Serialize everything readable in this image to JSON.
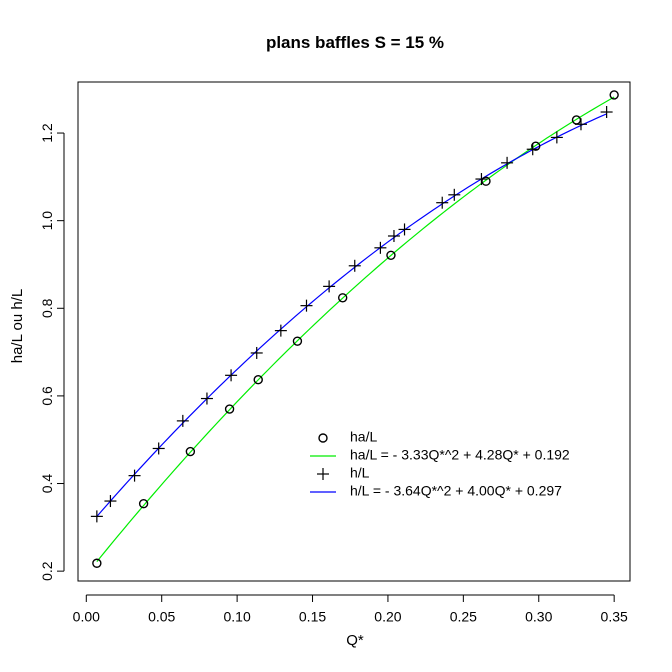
{
  "chart_data": {
    "type": "scatter",
    "title": "plans baffles S = 15 %",
    "xlabel": "Q*",
    "ylabel": "ha/L ou h/L",
    "xlim": [
      -0.0055,
      0.3605
    ],
    "ylim": [
      0.1775,
      1.3165
    ],
    "x_ticks": [
      0.0,
      0.05,
      0.1,
      0.15,
      0.2,
      0.25,
      0.3,
      0.35
    ],
    "x_tick_labels": [
      "0.00",
      "0.05",
      "0.10",
      "0.15",
      "0.20",
      "0.25",
      "0.30",
      "0.35"
    ],
    "y_ticks": [
      0.2,
      0.4,
      0.6,
      0.8,
      1.0,
      1.2
    ],
    "y_tick_labels": [
      "0.2",
      "0.4",
      "0.6",
      "0.8",
      "1.0",
      "1.2"
    ],
    "grid": false,
    "legend_position": "bottom-right",
    "series": [
      {
        "name": "ha/L",
        "kind": "points",
        "marker": "circle",
        "color": "#000000",
        "points": [
          [
            0.007,
            0.218
          ],
          [
            0.038,
            0.354
          ],
          [
            0.069,
            0.473
          ],
          [
            0.095,
            0.57
          ],
          [
            0.114,
            0.637
          ],
          [
            0.14,
            0.725
          ],
          [
            0.17,
            0.824
          ],
          [
            0.202,
            0.921
          ],
          [
            0.265,
            1.09
          ],
          [
            0.298,
            1.17
          ],
          [
            0.325,
            1.23
          ],
          [
            0.35,
            1.287
          ]
        ]
      },
      {
        "name": "ha/L = - 3.33Q*^2 + 4.28Q* + 0.192",
        "kind": "line",
        "color": "#00ee00",
        "coefficients": {
          "a": -3.33,
          "b": 4.28,
          "c": 0.192
        },
        "x_range": [
          0.007,
          0.35
        ]
      },
      {
        "name": "h/L",
        "kind": "points",
        "marker": "plus",
        "color": "#000000",
        "points": [
          [
            0.007,
            0.325
          ],
          [
            0.016,
            0.36
          ],
          [
            0.032,
            0.418
          ],
          [
            0.048,
            0.48
          ],
          [
            0.064,
            0.543
          ],
          [
            0.08,
            0.594
          ],
          [
            0.096,
            0.647
          ],
          [
            0.113,
            0.698
          ],
          [
            0.129,
            0.749
          ],
          [
            0.146,
            0.806
          ],
          [
            0.161,
            0.85
          ],
          [
            0.178,
            0.897
          ],
          [
            0.195,
            0.938
          ],
          [
            0.204,
            0.965
          ],
          [
            0.211,
            0.98
          ],
          [
            0.236,
            1.041
          ],
          [
            0.244,
            1.059
          ],
          [
            0.262,
            1.095
          ],
          [
            0.279,
            1.132
          ],
          [
            0.296,
            1.163
          ],
          [
            0.312,
            1.19
          ],
          [
            0.328,
            1.22
          ],
          [
            0.345,
            1.248
          ]
        ]
      },
      {
        "name": "h/L = - 3.64Q*^2 + 4.00Q* + 0.297",
        "kind": "line",
        "color": "#0000ff",
        "coefficients": {
          "a": -3.64,
          "b": 4.0,
          "c": 0.297
        },
        "x_range": [
          0.007,
          0.345
        ]
      }
    ]
  }
}
